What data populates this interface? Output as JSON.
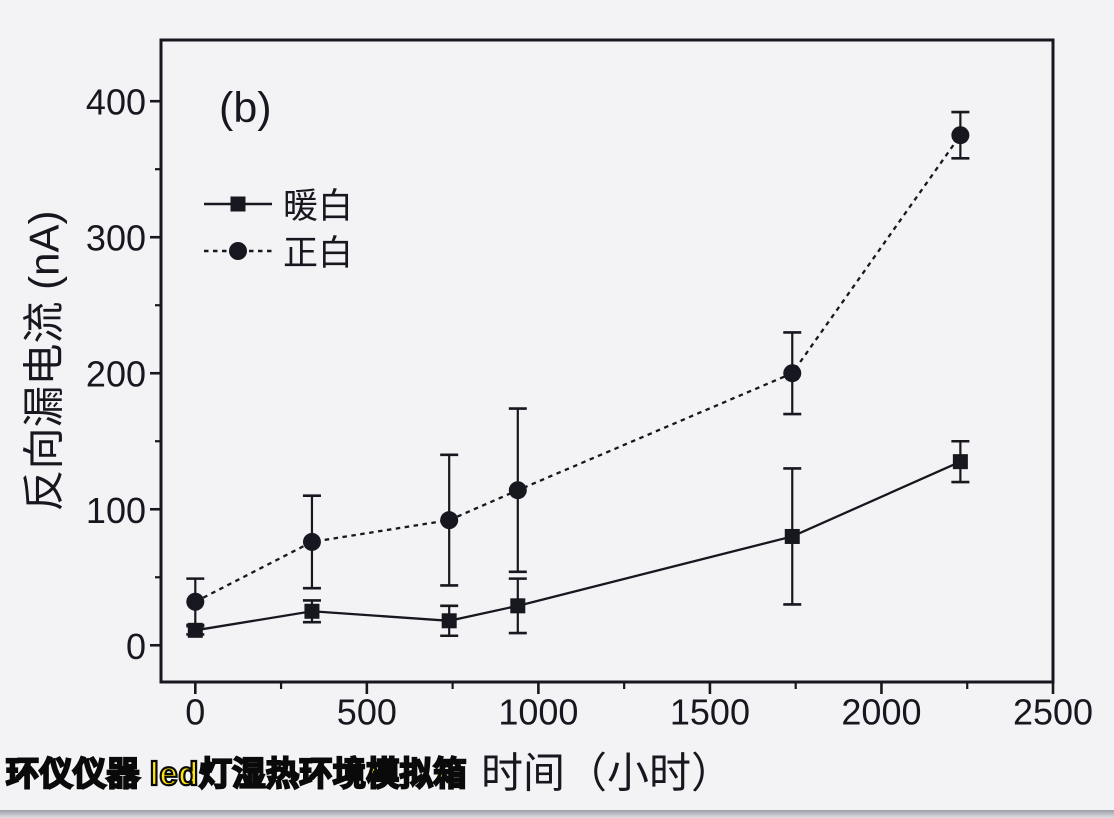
{
  "watermark": "环仪仪器 led灯湿热环境模拟箱",
  "colors": {
    "ink": "#17171f",
    "background": "#f3f3f6",
    "watermark_fill": "#ffe20a",
    "watermark_outline": "#0a0a0a",
    "bottom_bar": "#9c9da7"
  },
  "chart_data": {
    "type": "line",
    "title": "",
    "panel_label": "(b)",
    "xlabel": "时间（小时）",
    "ylabel": "反向漏电流 (nA)",
    "grid": false,
    "error_bars": true,
    "legend_position": "upper-left-inside",
    "xlim": [
      -100,
      2500
    ],
    "ylim": [
      -27,
      445
    ],
    "x_ticks_major": [
      0,
      500,
      1000,
      1500,
      2000,
      2500
    ],
    "x_ticks_minor": [
      250,
      750,
      1250,
      1750,
      2250
    ],
    "y_ticks_major": [
      0,
      100,
      200,
      300,
      400
    ],
    "y_ticks_minor": [
      50,
      150,
      250,
      350
    ],
    "x": [
      0,
      340,
      740,
      940,
      1740,
      2230
    ],
    "series": [
      {
        "name": "暖白",
        "marker": "square",
        "line_style": "solid",
        "x": [
          0,
          340,
          740,
          940,
          1740,
          2230
        ],
        "y": [
          11,
          25,
          18,
          29,
          80,
          135
        ],
        "y_err": [
          3,
          8,
          11,
          20,
          50,
          15
        ]
      },
      {
        "name": "正白",
        "marker": "circle",
        "line_style": "dotted",
        "x": [
          0,
          340,
          740,
          940,
          1740,
          2230
        ],
        "y": [
          32,
          76,
          92,
          114,
          200,
          375
        ],
        "y_err": [
          17,
          34,
          48,
          60,
          30,
          17
        ]
      }
    ]
  }
}
